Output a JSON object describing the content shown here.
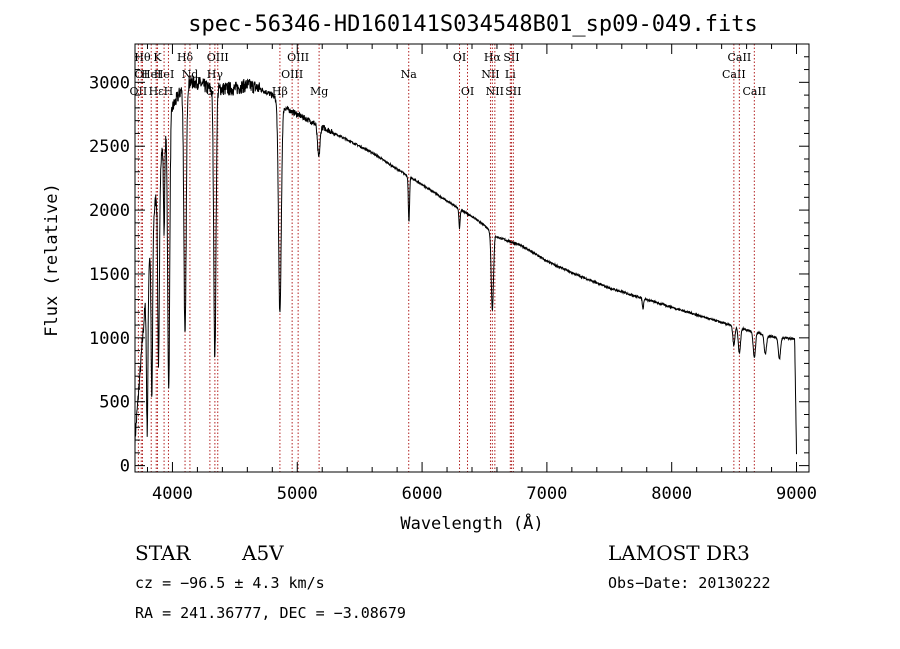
{
  "chart_data": {
    "type": "line",
    "title": "spec-56346-HD160141S034548B01_sp09-049.fits",
    "xlabel": "Wavelength (Å)",
    "ylabel": "Flux (relative)",
    "xlim": [
      3700,
      9100
    ],
    "ylim": [
      -50,
      3300
    ],
    "xticks": [
      4000,
      5000,
      6000,
      7000,
      8000,
      9000
    ],
    "yticks": [
      0,
      500,
      1000,
      1500,
      2000,
      2500,
      3000
    ],
    "series": [
      {
        "name": "spectrum",
        "anchors": [
          [
            3700,
            200
          ],
          [
            3800,
            1500
          ],
          [
            3900,
            2400
          ],
          [
            4000,
            2800
          ],
          [
            4100,
            3000
          ],
          [
            4200,
            3000
          ],
          [
            4300,
            2950
          ],
          [
            4400,
            2950
          ],
          [
            4500,
            2950
          ],
          [
            4600,
            2980
          ],
          [
            4700,
            2950
          ],
          [
            4800,
            2900
          ],
          [
            4900,
            2800
          ],
          [
            5000,
            2750
          ],
          [
            5100,
            2700
          ],
          [
            5200,
            2650
          ],
          [
            5400,
            2550
          ],
          [
            5600,
            2450
          ],
          [
            5800,
            2320
          ],
          [
            6000,
            2200
          ],
          [
            6200,
            2070
          ],
          [
            6400,
            1950
          ],
          [
            6500,
            1880
          ],
          [
            6600,
            1790
          ],
          [
            6800,
            1720
          ],
          [
            7000,
            1600
          ],
          [
            7200,
            1510
          ],
          [
            7500,
            1390
          ],
          [
            8000,
            1240
          ],
          [
            8500,
            1090
          ],
          [
            8800,
            1010
          ],
          [
            9000,
            990
          ]
        ],
        "absorption": [
          {
            "center": 3798,
            "depth": 1200,
            "width": 6
          },
          {
            "center": 3835,
            "depth": 1300,
            "width": 6
          },
          {
            "center": 3889,
            "depth": 1500,
            "width": 7
          },
          {
            "center": 3933,
            "depth": 700,
            "width": 5
          },
          {
            "center": 3970,
            "depth": 2100,
            "width": 8
          },
          {
            "center": 4101,
            "depth": 2000,
            "width": 9
          },
          {
            "center": 4340,
            "depth": 2100,
            "width": 9
          },
          {
            "center": 4861,
            "depth": 1650,
            "width": 11
          },
          {
            "center": 5172,
            "depth": 250,
            "width": 10
          },
          {
            "center": 5895,
            "depth": 350,
            "width": 5
          },
          {
            "center": 6300,
            "depth": 150,
            "width": 5
          },
          {
            "center": 6563,
            "depth": 600,
            "width": 9
          },
          {
            "center": 7770,
            "depth": 80,
            "width": 5
          },
          {
            "center": 8498,
            "depth": 150,
            "width": 8
          },
          {
            "center": 8542,
            "depth": 200,
            "width": 9
          },
          {
            "center": 8662,
            "depth": 200,
            "width": 9
          },
          {
            "center": 8750,
            "depth": 150,
            "width": 9
          },
          {
            "center": 8863,
            "depth": 170,
            "width": 9
          }
        ]
      }
    ],
    "lines": [
      {
        "wave": 3727,
        "label": "OII",
        "row": 3
      },
      {
        "wave": 3750,
        "label": "OI",
        "row": 2
      },
      {
        "wave": 3760,
        "label": "Hθ",
        "row": 1
      },
      {
        "wave": 3830,
        "label": "HeI",
        "row": 2
      },
      {
        "wave": 3870,
        "label": "Hε",
        "row": 3
      },
      {
        "wave": 3880,
        "label": "K",
        "row": 1
      },
      {
        "wave": 3933,
        "label": "HeI",
        "row": 2
      },
      {
        "wave": 3968,
        "label": "H",
        "row": 3
      },
      {
        "wave": 4101,
        "label": "Hδ",
        "row": 1
      },
      {
        "wave": 4140,
        "label": "Nd",
        "row": 2
      },
      {
        "wave": 4300,
        "label": "G",
        "row": 3
      },
      {
        "wave": 4340,
        "label": "Hγ",
        "row": 2
      },
      {
        "wave": 4363,
        "label": "OIII",
        "row": 1
      },
      {
        "wave": 4861,
        "label": "Hβ",
        "row": 3
      },
      {
        "wave": 4959,
        "label": "OIII",
        "row": 2
      },
      {
        "wave": 5007,
        "label": "OIII",
        "row": 1
      },
      {
        "wave": 5175,
        "label": "Mg",
        "row": 3
      },
      {
        "wave": 5893,
        "label": "Na",
        "row": 2
      },
      {
        "wave": 6300,
        "label": "OI",
        "row": 1
      },
      {
        "wave": 6364,
        "label": "OI",
        "row": 3
      },
      {
        "wave": 6548,
        "label": "NII",
        "row": 2
      },
      {
        "wave": 6563,
        "label": "Hα",
        "row": 1
      },
      {
        "wave": 6583,
        "label": "NII",
        "row": 3
      },
      {
        "wave": 6707,
        "label": "Li",
        "row": 2
      },
      {
        "wave": 6716,
        "label": "SII",
        "row": 1
      },
      {
        "wave": 6731,
        "label": "SII",
        "row": 3
      },
      {
        "wave": 8498,
        "label": "CaII",
        "row": 2
      },
      {
        "wave": 8542,
        "label": "CaII",
        "row": 1
      },
      {
        "wave": 8662,
        "label": "CaII",
        "row": 3
      }
    ]
  },
  "info": {
    "object_class": "STAR",
    "subclass": "A5V",
    "survey": "LAMOST DR3",
    "cz": "cz = −96.5 ± 4.3 km/s",
    "obs_date": "Obs−Date: 20130222",
    "radec": "RA = 241.36777, DEC =  −3.08679"
  },
  "colors": {
    "spectrum": "#000000",
    "line_marker": "#b22222",
    "axis": "#000000"
  }
}
